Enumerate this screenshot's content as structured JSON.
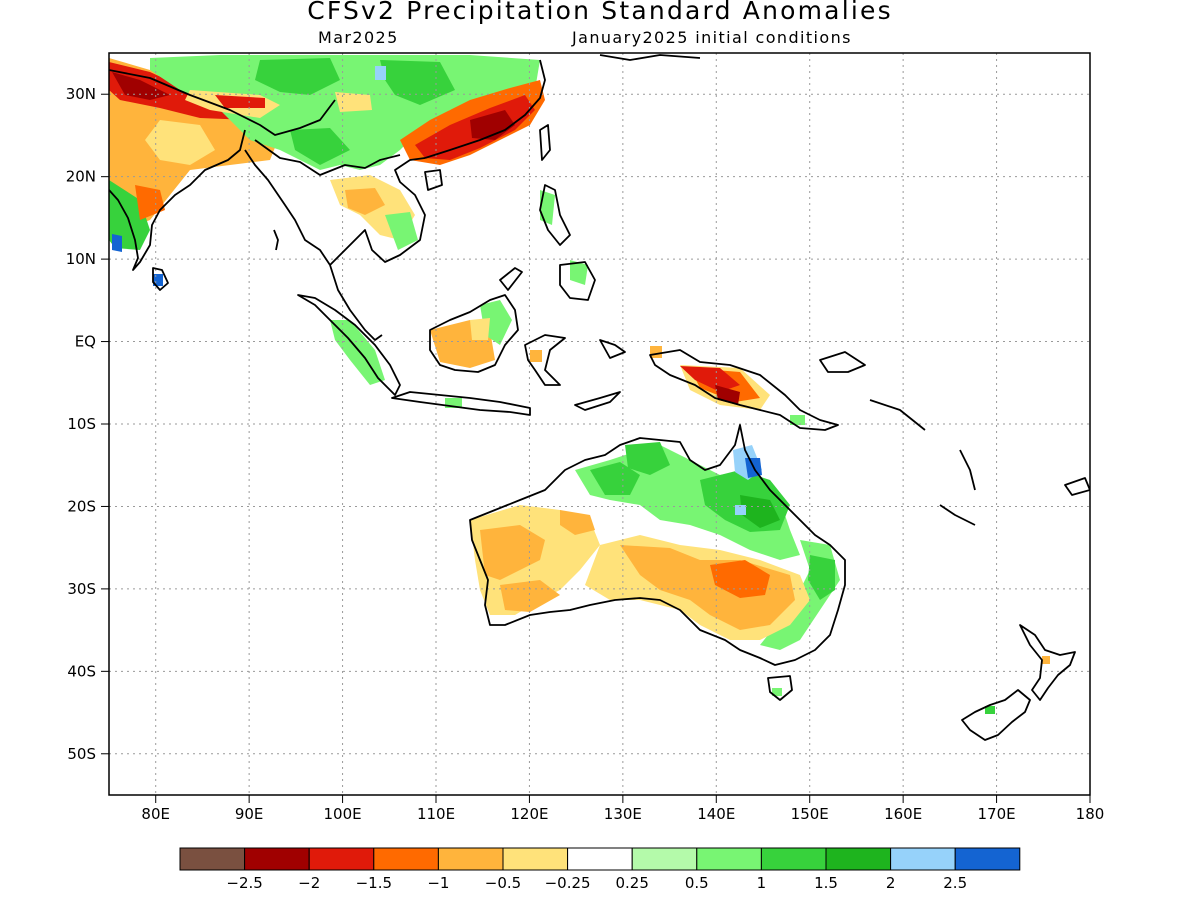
{
  "header": {
    "title": "CFSv2 Precipitation Standard Anomalies",
    "valid_month": "Mar2025",
    "initial_conditions": "January2025 initial conditions"
  },
  "map": {
    "lon_range": [
      75,
      180
    ],
    "lat_range": [
      -55,
      35
    ],
    "lat_labels": [
      {
        "lat": 30,
        "text": "30N"
      },
      {
        "lat": 20,
        "text": "20N"
      },
      {
        "lat": 10,
        "text": "10N"
      },
      {
        "lat": 0,
        "text": "EQ"
      },
      {
        "lat": -10,
        "text": "10S"
      },
      {
        "lat": -20,
        "text": "20S"
      },
      {
        "lat": -30,
        "text": "30S"
      },
      {
        "lat": -40,
        "text": "40S"
      },
      {
        "lat": -50,
        "text": "50S"
      }
    ],
    "lon_labels": [
      {
        "lon": 80,
        "text": "80E"
      },
      {
        "lon": 90,
        "text": "90E"
      },
      {
        "lon": 100,
        "text": "100E"
      },
      {
        "lon": 110,
        "text": "110E"
      },
      {
        "lon": 120,
        "text": "120E"
      },
      {
        "lon": 130,
        "text": "130E"
      },
      {
        "lon": 140,
        "text": "140E"
      },
      {
        "lon": 150,
        "text": "150E"
      },
      {
        "lon": 160,
        "text": "160E"
      },
      {
        "lon": 170,
        "text": "170E"
      },
      {
        "lon": 180,
        "text": "180"
      }
    ]
  },
  "colorbar": {
    "colors": [
      "#7a5040",
      "#a00000",
      "#e01a0a",
      "#ff6a00",
      "#ffb43c",
      "#ffe27a",
      "#ffffff",
      "#b4faaa",
      "#78f573",
      "#37d23c",
      "#1eb41e",
      "#96d2fa",
      "#1464d2"
    ],
    "labels": [
      "−2.5",
      "−2",
      "−1.5",
      "−1",
      "−0.5",
      "−0.25",
      "0.25",
      "0.5",
      "1",
      "1.5",
      "2",
      "2.5"
    ]
  }
}
